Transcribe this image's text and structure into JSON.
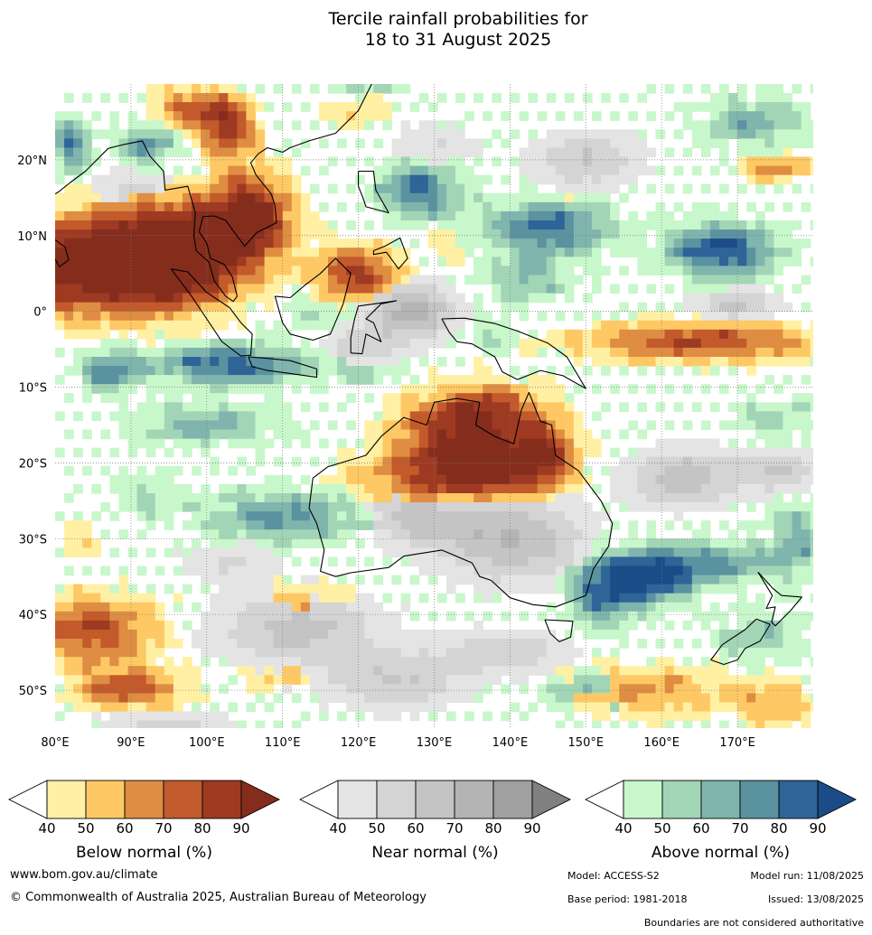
{
  "title": {
    "line1": "Tercile rainfall probabilities for",
    "line2": "18 to 31 August 2025"
  },
  "map": {
    "lon_labels": [
      "80°E",
      "90°E",
      "100°E",
      "110°E",
      "120°E",
      "130°E",
      "140°E",
      "150°E",
      "160°E",
      "170°E"
    ],
    "lat_labels": [
      "20°N",
      "10°N",
      "0°",
      "10°S",
      "20°S",
      "30°S",
      "40°S",
      "50°S"
    ],
    "lon_range": [
      80,
      180
    ],
    "lat_range": [
      -55,
      30
    ],
    "colors": {
      "below": [
        "#fff0a4",
        "#fec964",
        "#de8d42",
        "#c25a2b",
        "#9e3a22",
        "#852d1d"
      ],
      "near": [
        "#e4e4e4",
        "#d4d4d4",
        "#c4c4c4",
        "#b4b4b4",
        "#a0a0a0",
        "#808080"
      ],
      "above": [
        "#c8f7cb",
        "#a2d5b6",
        "#7fb5ad",
        "#5a92a0",
        "#2e6497",
        "#1b4c87"
      ]
    }
  },
  "colorbars": [
    {
      "key": "below",
      "label": "Below normal (%)",
      "ticks": [
        "40",
        "50",
        "60",
        "70",
        "80",
        "90"
      ]
    },
    {
      "key": "near",
      "label": "Near normal (%)",
      "ticks": [
        "40",
        "50",
        "60",
        "70",
        "80",
        "90"
      ]
    },
    {
      "key": "above",
      "label": "Above normal (%)",
      "ticks": [
        "40",
        "50",
        "60",
        "70",
        "80",
        "90"
      ]
    }
  ],
  "footer": {
    "website": "www.bom.gov.au/climate",
    "copyright": "© Commonwealth of Australia 2025, Australian Bureau of Meteorology",
    "model": "Model: ACCESS-S2",
    "model_run": "Model run: 11/08/2025",
    "base_period": "Base period: 1981-2018",
    "issued": "Issued: 13/08/2025",
    "disclaimer": "Boundaries are not considered authoritative"
  }
}
